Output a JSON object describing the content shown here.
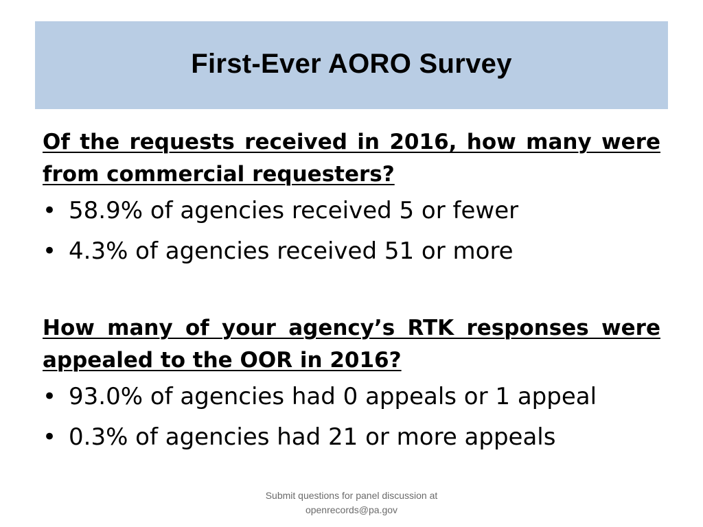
{
  "slide": {
    "title": "First-Ever AORO Survey",
    "sections": [
      {
        "question": "Of the requests received in 2016, how many were from commercial requesters?",
        "bullets": [
          "58.9% of agencies received 5 or fewer",
          "4.3% of agencies received 51 or more"
        ]
      },
      {
        "question": "How many of your agency’s RTK responses were appealed to the OOR in 2016?",
        "bullets": [
          "93.0% of agencies had 0 appeals or 1 appeal",
          "0.3% of agencies had 21 or more appeals"
        ]
      }
    ],
    "footer_line1": "Submit questions for panel discussion at",
    "footer_line2": "openrecords@pa.gov",
    "bullet_glyph": "•"
  },
  "colors": {
    "title_bar": "#b9cde4",
    "footer_text": "#6a6a6a"
  }
}
